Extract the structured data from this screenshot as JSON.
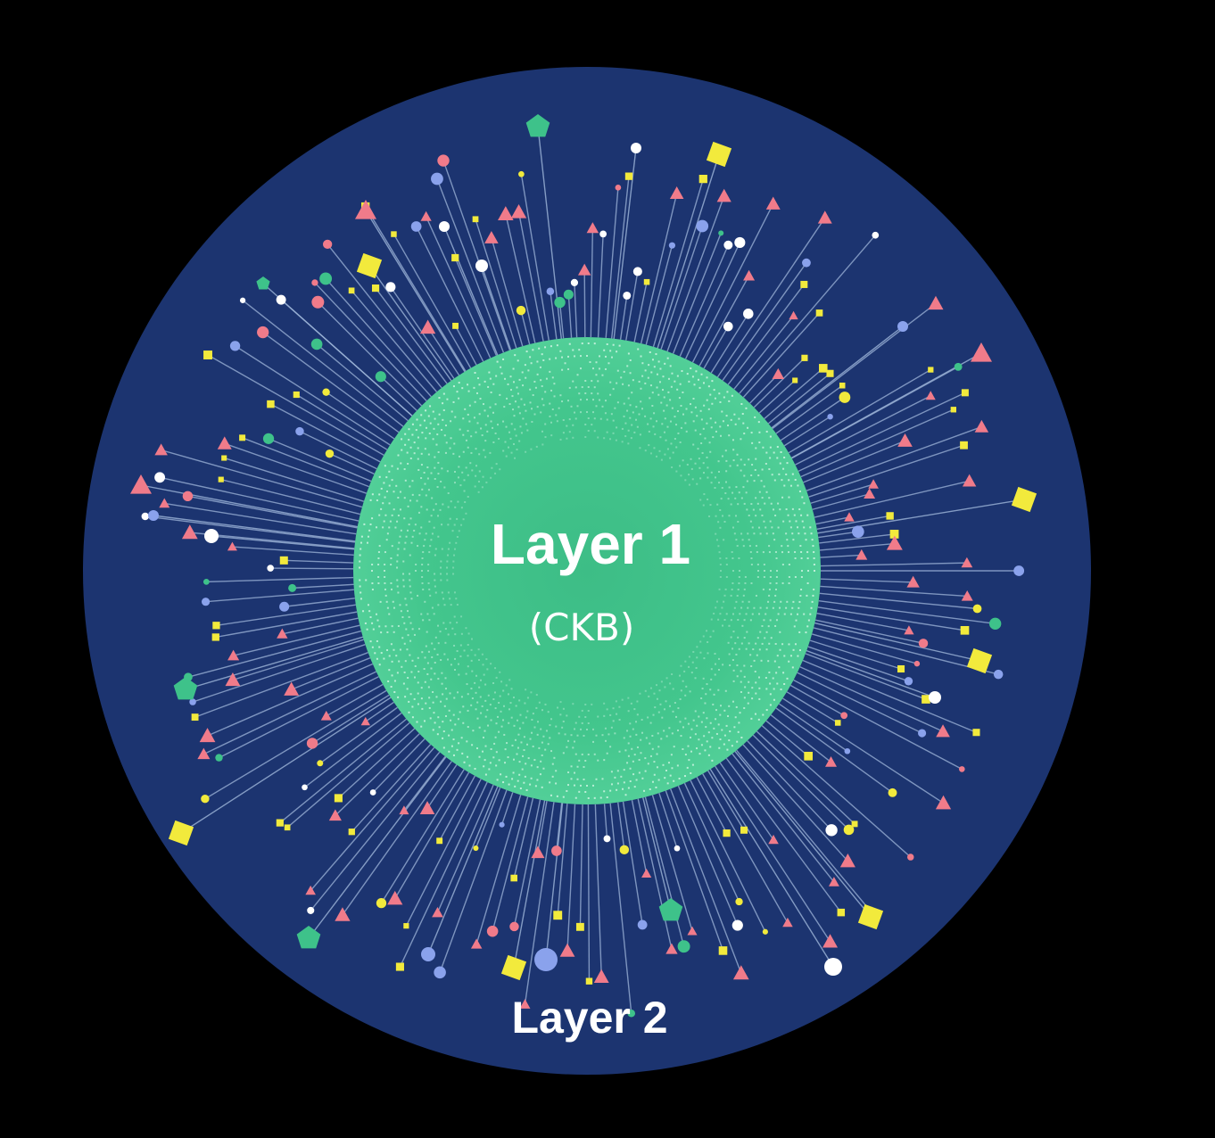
{
  "diagram": {
    "inner_title": "Layer 1",
    "inner_subtitle": "(CKB)",
    "outer_title": "Layer 2"
  },
  "colors": {
    "background": "#000000",
    "outer_disc": "#1c3470",
    "inner_disc": "#3ec28a",
    "ray": "#9fb6d9",
    "node_white": "#ffffff",
    "node_blue": "#8aa2ec",
    "node_green": "#3ec28a",
    "node_yellow": "#f2ea3c",
    "node_pink": "#f07b8a"
  },
  "icons": {
    "node_shapes": [
      "circle",
      "square",
      "triangle",
      "pentagon"
    ]
  }
}
